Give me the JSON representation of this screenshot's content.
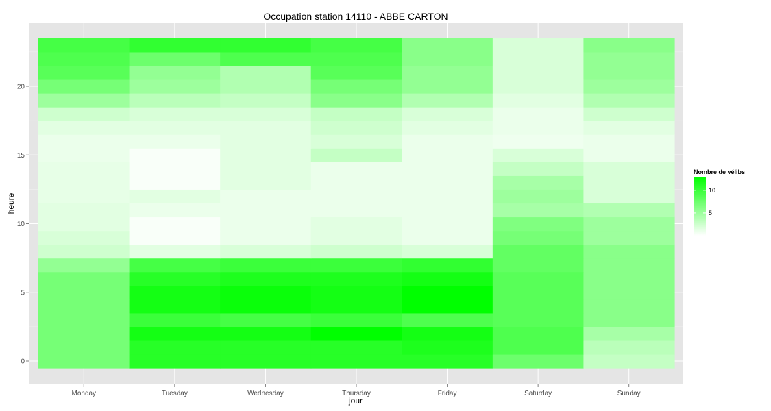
{
  "chart_data": {
    "type": "heatmap",
    "title": "Occupation station 14110 - ABBE CARTON",
    "xlabel": "jour",
    "ylabel": "heure",
    "x_categories": [
      "Monday",
      "Tuesday",
      "Wednesday",
      "Thursday",
      "Friday",
      "Saturday",
      "Sunday"
    ],
    "y_hours": [
      0,
      1,
      2,
      3,
      4,
      5,
      6,
      7,
      8,
      9,
      10,
      11,
      12,
      13,
      14,
      15,
      16,
      17,
      18,
      19,
      20,
      21,
      22,
      23
    ],
    "y_ticks": [
      0,
      5,
      10,
      15,
      20
    ],
    "grid": true,
    "legend": {
      "title": "Nombre de vélibs",
      "ticks": [
        5,
        10
      ],
      "range": [
        0,
        13
      ],
      "low_color": "#ffffff",
      "high_color": "#00ff00",
      "placement": "right"
    },
    "values": [
      [
        7,
        11,
        11,
        11,
        11,
        7.5,
        3
      ],
      [
        7,
        11,
        11,
        11,
        11.5,
        9,
        3.5
      ],
      [
        7,
        12,
        12,
        13,
        12,
        9,
        4.5
      ],
      [
        7,
        10,
        9.5,
        10,
        9,
        8.5,
        6
      ],
      [
        7,
        12,
        12.5,
        12,
        13.5,
        8.5,
        6
      ],
      [
        7,
        12,
        12.5,
        12,
        13.5,
        8.5,
        6
      ],
      [
        7,
        11,
        11.5,
        11.5,
        12,
        8.5,
        6
      ],
      [
        5.5,
        9.5,
        10,
        10,
        10.5,
        8,
        6
      ],
      [
        2.5,
        1.5,
        2,
        2.5,
        2,
        8,
        6
      ],
      [
        2,
        0.3,
        1,
        1.5,
        1,
        7,
        5
      ],
      [
        1.5,
        0.3,
        1,
        1.5,
        1,
        6.5,
        5
      ],
      [
        1.5,
        1,
        1,
        1,
        1,
        4.5,
        4
      ],
      [
        1.2,
        1.5,
        1,
        1,
        1,
        5,
        2
      ],
      [
        1.2,
        0.3,
        1.5,
        1,
        1,
        4.5,
        2
      ],
      [
        1.2,
        0.3,
        1.5,
        1,
        1,
        3,
        2
      ],
      [
        1,
        0.3,
        1.5,
        3,
        1,
        2,
        1
      ],
      [
        1,
        1,
        1.5,
        2,
        1,
        0.8,
        1
      ],
      [
        1.5,
        1.5,
        1.5,
        2.5,
        1.5,
        1,
        1.5
      ],
      [
        2.5,
        2,
        2,
        3,
        2,
        1,
        2.5
      ],
      [
        5,
        3.5,
        3,
        6,
        4,
        1.5,
        4
      ],
      [
        7,
        5,
        4,
        7,
        5.5,
        2,
        5
      ],
      [
        8.5,
        5.5,
        4,
        8.5,
        5.5,
        2,
        5.5
      ],
      [
        9,
        7.5,
        9,
        9,
        6,
        2,
        5.5
      ],
      [
        9.5,
        10.5,
        10.5,
        9.5,
        6,
        2,
        6
      ]
    ]
  }
}
